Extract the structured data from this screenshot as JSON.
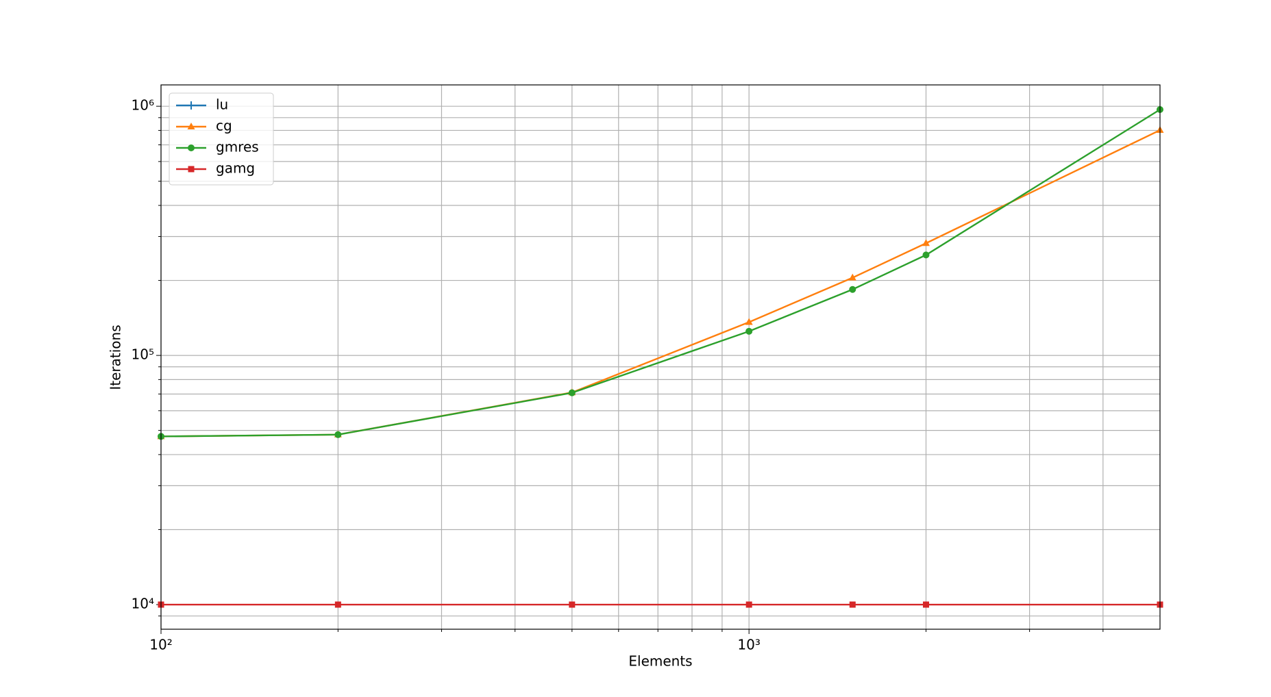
{
  "chart_data": {
    "type": "line",
    "x_label": "Elements",
    "y_label": "Iterations",
    "x": [
      100,
      200,
      500,
      1000,
      1500,
      2000,
      5000
    ],
    "series": [
      {
        "name": "lu",
        "color": "#1f77b4",
        "marker": "plus",
        "values": [
          null,
          null,
          null,
          null,
          null,
          null,
          null
        ]
      },
      {
        "name": "cg",
        "color": "#ff7f0e",
        "marker": "triangle",
        "values": [
          47300,
          48100,
          71000,
          136000,
          205000,
          282000,
          802000
        ]
      },
      {
        "name": "gmres",
        "color": "#2ca02c",
        "marker": "circle",
        "values": [
          47300,
          48100,
          70800,
          125000,
          184000,
          253000,
          970000
        ]
      },
      {
        "name": "gamg",
        "color": "#d62728",
        "marker": "square",
        "values": [
          10000,
          10000,
          10000,
          10000,
          10000,
          10000,
          10000
        ]
      }
    ],
    "xlog": true,
    "ylog": true,
    "xlim": [
      100,
      5000
    ],
    "ylim": [
      7965,
      1218000
    ],
    "xticks": [
      {
        "value": 100,
        "label": "10²"
      },
      {
        "value": 1000,
        "label": "10³"
      }
    ],
    "xticks_minor": [
      200,
      300,
      400,
      500,
      600,
      700,
      800,
      900,
      2000,
      3000,
      4000
    ],
    "yticks": [
      {
        "value": 10000,
        "label": "10⁴"
      },
      {
        "value": 100000,
        "label": "10⁵"
      },
      {
        "value": 1000000,
        "label": "10⁶"
      }
    ],
    "yticks_minor": [
      9000,
      20000,
      30000,
      40000,
      50000,
      60000,
      70000,
      80000,
      90000,
      200000,
      300000,
      400000,
      500000,
      600000,
      700000,
      800000,
      900000
    ],
    "grid": true,
    "legend": "upper left"
  }
}
